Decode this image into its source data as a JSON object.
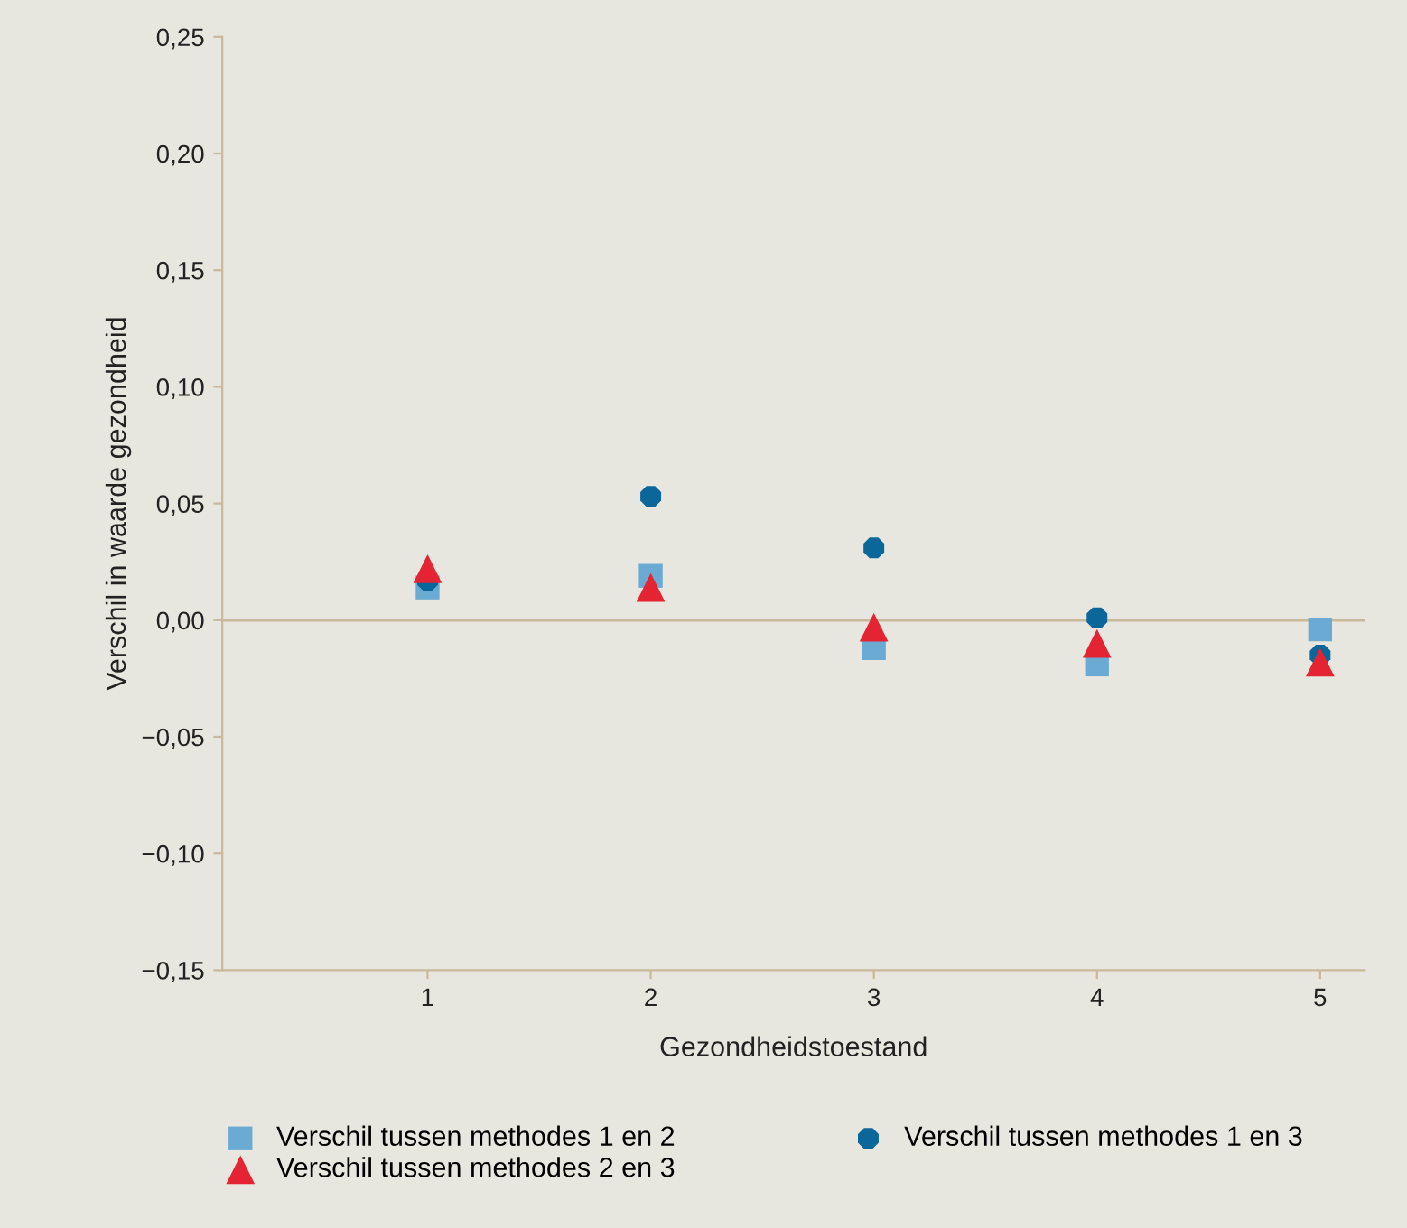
{
  "chart_data": {
    "type": "scatter",
    "xlabel": "Gezondheidstoestand",
    "ylabel": "Verschil in waarde gezondheid",
    "categories": [
      "1",
      "2",
      "3",
      "4",
      "5"
    ],
    "series": [
      {
        "name": "Verschil tussen methodes 1 en 2",
        "color": "#6aaad3",
        "marker": "square",
        "values": [
          0.014,
          0.019,
          -0.012,
          -0.019,
          -0.004
        ]
      },
      {
        "name": "Verschil tussen methodes 2 en 3",
        "color": "#e42333",
        "marker": "triangle",
        "values": [
          0.022,
          0.014,
          -0.003,
          -0.01,
          -0.018
        ]
      },
      {
        "name": "Verschil tussen methodes 1 en 3",
        "color": "#0b6699",
        "marker": "circle",
        "values": [
          0.017,
          0.053,
          0.031,
          0.001,
          -0.015
        ]
      }
    ],
    "ylim": [
      -0.15,
      0.25
    ],
    "yticks": [
      {
        "value": -0.15,
        "label": "−0,15"
      },
      {
        "value": -0.1,
        "label": "−0,10"
      },
      {
        "value": -0.05,
        "label": "−0,05"
      },
      {
        "value": 0,
        "label": "0,00"
      },
      {
        "value": 0.05,
        "label": "0,05"
      },
      {
        "value": 0.1,
        "label": "0,10"
      },
      {
        "value": 0.15,
        "label": "0,15"
      },
      {
        "value": 0.2,
        "label": "0,20"
      },
      {
        "value": 0.25,
        "label": "0,25"
      }
    ],
    "ref_lines": [
      {
        "axis": "y",
        "value": 0,
        "color": "#c8b99a"
      }
    ],
    "grid": false,
    "legend": "bottom"
  }
}
